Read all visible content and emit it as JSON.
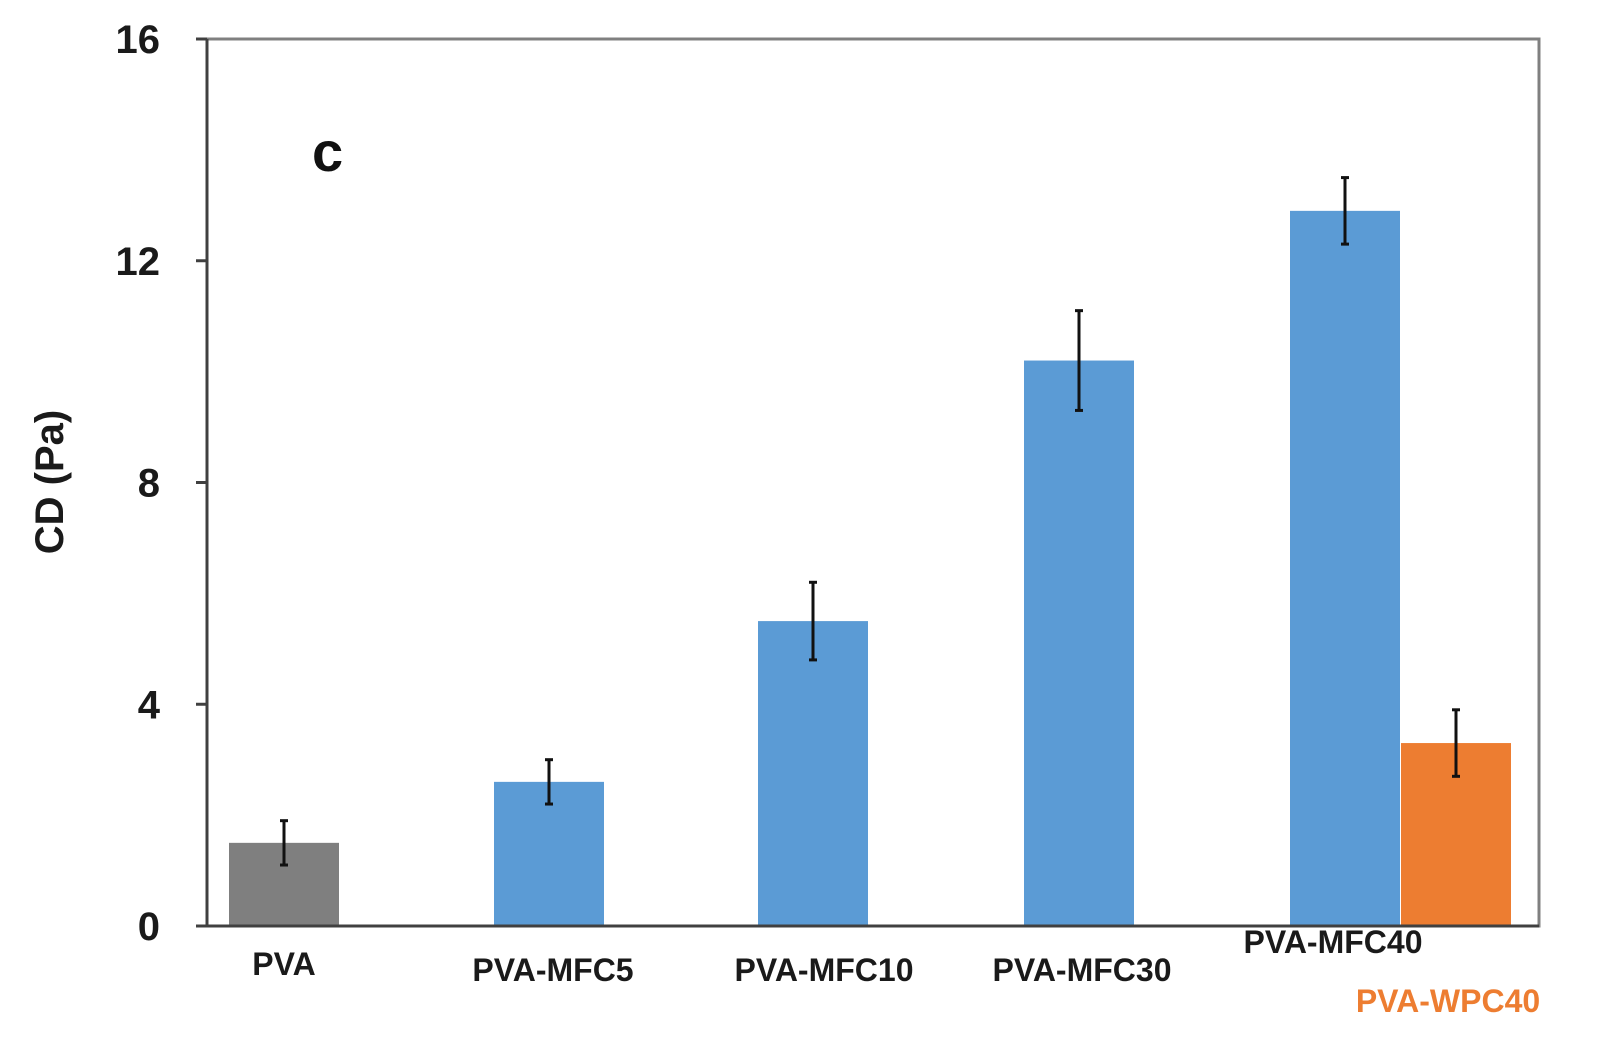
{
  "chart_data": {
    "type": "bar",
    "title": "",
    "panel_label": "c",
    "xlabel": "",
    "ylabel": "CD (Pa)",
    "ylim": [
      0,
      16
    ],
    "yticks": [
      0,
      4,
      8,
      12,
      16
    ],
    "grid": false,
    "bars": [
      {
        "label": "PVA",
        "value": 1.5,
        "error": 0.4,
        "color": "#7f7f7f",
        "label_color": "#1a1a1a"
      },
      {
        "label": "PVA-MFC5",
        "value": 2.6,
        "error": 0.4,
        "color": "#5b9bd5",
        "label_color": "#1a1a1a"
      },
      {
        "label": "PVA-MFC10",
        "value": 5.5,
        "error": 0.7,
        "color": "#5b9bd5",
        "label_color": "#1a1a1a"
      },
      {
        "label": "PVA-MFC30",
        "value": 10.2,
        "error": 0.9,
        "color": "#5b9bd5",
        "label_color": "#1a1a1a"
      },
      {
        "label": "PVA-MFC40",
        "value": 12.9,
        "error": 0.6,
        "color": "#5b9bd5",
        "label_color": "#1a1a1a"
      },
      {
        "label": "PVA-WPC40",
        "value": 3.3,
        "error": 0.6,
        "color": "#ed7d31",
        "label_color": "#ed7d31"
      }
    ]
  }
}
